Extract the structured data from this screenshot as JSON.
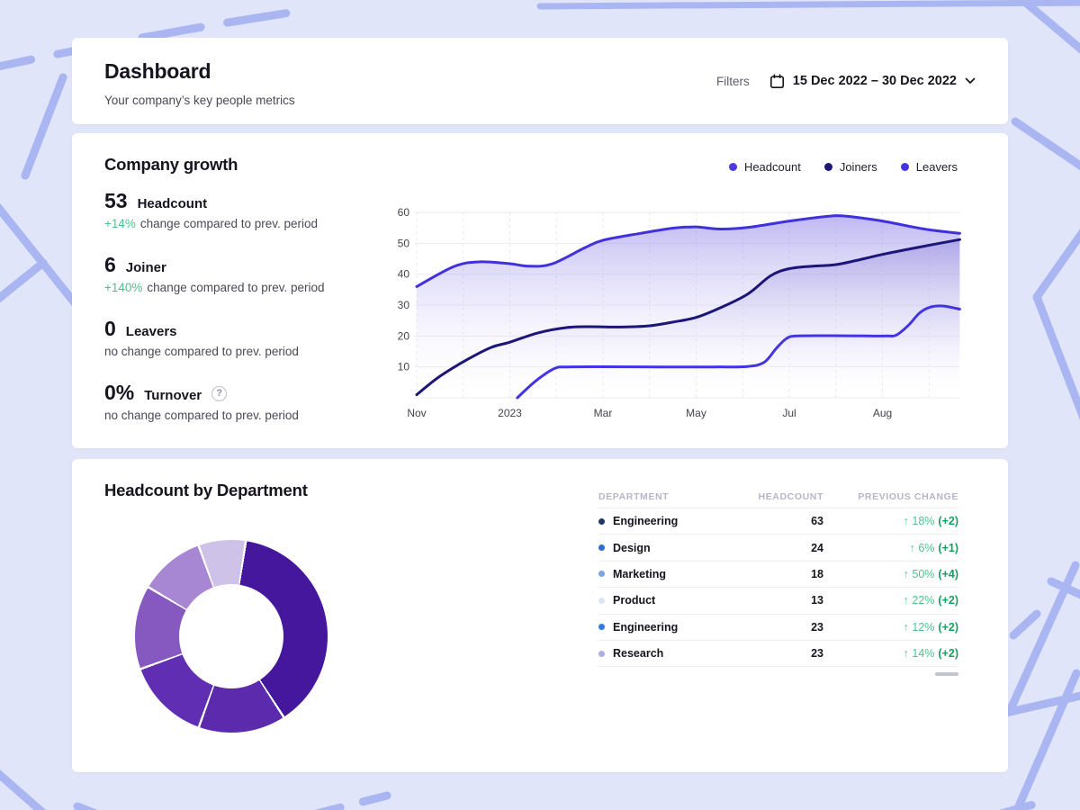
{
  "page": {
    "background": "#e0e5f9",
    "pattern_color": "#a9b6f2",
    "card_color": "#ffffff"
  },
  "header": {
    "title": "Dashboard",
    "subtitle": "Your company’s key people metrics",
    "filters_label": "Filters",
    "date_range": "15 Dec 2022 – 30 Dec 2022"
  },
  "growth": {
    "title": "Company growth",
    "legend": [
      {
        "label": "Headcount",
        "color": "#4b3ae4"
      },
      {
        "label": "Joiners",
        "color": "#1b1677"
      },
      {
        "label": "Leavers",
        "color": "#4334e2"
      }
    ],
    "metrics": [
      {
        "value": "53",
        "label": "Headcount",
        "change": "+14%",
        "change_text": "change compared to prev. period",
        "help": false
      },
      {
        "value": "6",
        "label": "Joiner",
        "change": "+140%",
        "change_text": "change compared to prev. period",
        "help": false
      },
      {
        "value": "0",
        "label": "Leavers",
        "change": "",
        "change_text": "no change compared to prev. period",
        "help": false
      },
      {
        "value": "0%",
        "label": "Turnover",
        "change": "",
        "change_text": "no change compared to prev. period",
        "help": true
      }
    ]
  },
  "department": {
    "title": "Headcount by Department",
    "table": {
      "headers": [
        "DEPARTMENT",
        "HEADCOUNT",
        "PREVIOUS CHANGE"
      ],
      "rows": [
        {
          "name": "Engineering",
          "dot": "#1f3864",
          "headcount": "63",
          "change_pct": "↑ 18%",
          "change_abs": "(+2)"
        },
        {
          "name": "Design",
          "dot": "#2b6fd4",
          "headcount": "24",
          "change_pct": "↑ 6%",
          "change_abs": "(+1)"
        },
        {
          "name": "Marketing",
          "dot": "#7ba3e8",
          "headcount": "18",
          "change_pct": "↑ 50%",
          "change_abs": "(+4)"
        },
        {
          "name": "Product",
          "dot": "#d9e6f8",
          "headcount": "13",
          "change_pct": "↑ 22%",
          "change_abs": "(+2)"
        },
        {
          "name": "Engineering",
          "dot": "#2e7de4",
          "headcount": "23",
          "change_pct": "↑ 12%",
          "change_abs": "(+2)"
        },
        {
          "name": "Research",
          "dot": "#a9b0e0",
          "headcount": "23",
          "change_pct": "↑ 14%",
          "change_abs": "(+2)"
        }
      ]
    }
  },
  "chart_data": [
    {
      "type": "area",
      "title": "Company growth",
      "x_ticks": [
        "Nov",
        "2023",
        "Mar",
        "May",
        "Jul",
        "Aug"
      ],
      "y_ticks": [
        10,
        20,
        30,
        40,
        50,
        60
      ],
      "ylim": [
        0,
        60
      ],
      "grid": true,
      "legend_position": "top-right",
      "series": [
        {
          "name": "Headcount",
          "color": "#4031dd",
          "fill": "#7b6ce4",
          "points": [
            [
              0,
              36
            ],
            [
              0.4,
              42.5
            ],
            [
              0.68,
              44
            ],
            [
              1,
              43.4
            ],
            [
              1.2,
              42.6
            ],
            [
              1.45,
              43.3
            ],
            [
              1.8,
              48.5
            ],
            [
              2,
              51
            ],
            [
              2.4,
              53.2
            ],
            [
              2.75,
              54.9
            ],
            [
              3,
              55.3
            ],
            [
              3.25,
              54.6
            ],
            [
              3.55,
              55.1
            ],
            [
              4,
              57.2
            ],
            [
              4.4,
              58.7
            ],
            [
              4.6,
              58.8
            ],
            [
              5,
              57.2
            ],
            [
              5.45,
              54.6
            ],
            [
              5.83,
              53.2
            ]
          ]
        },
        {
          "name": "Joiners",
          "color": "#1b1677",
          "fill": "#6f63cf",
          "points": [
            [
              0,
              1
            ],
            [
              0.25,
              7
            ],
            [
              0.55,
              12.5
            ],
            [
              0.8,
              16.3
            ],
            [
              1,
              18
            ],
            [
              1.3,
              21
            ],
            [
              1.6,
              22.7
            ],
            [
              1.85,
              23
            ],
            [
              2.2,
              22.9
            ],
            [
              2.5,
              23.3
            ],
            [
              2.75,
              24.5
            ],
            [
              3,
              26
            ],
            [
              3.25,
              29
            ],
            [
              3.55,
              33.5
            ],
            [
              3.8,
              39.5
            ],
            [
              4,
              41.8
            ],
            [
              4.25,
              42.6
            ],
            [
              4.5,
              43.1
            ],
            [
              4.8,
              45
            ],
            [
              5,
              46.4
            ],
            [
              5.4,
              48.8
            ],
            [
              5.83,
              51.2
            ]
          ]
        },
        {
          "name": "Leavers",
          "color": "#4334e2",
          "fill": "#7b6ce4",
          "points": [
            [
              1.08,
              0
            ],
            [
              1.28,
              5.5
            ],
            [
              1.48,
              9.5
            ],
            [
              1.62,
              10
            ],
            [
              2,
              10.05
            ],
            [
              2.6,
              10
            ],
            [
              3.2,
              10
            ],
            [
              3.55,
              10.15
            ],
            [
              3.73,
              11.5
            ],
            [
              3.86,
              16
            ],
            [
              3.97,
              19.2
            ],
            [
              4.08,
              20
            ],
            [
              4.45,
              20.1
            ],
            [
              4.85,
              20
            ],
            [
              5.05,
              20
            ],
            [
              5.15,
              20.3
            ],
            [
              5.28,
              23.5
            ],
            [
              5.4,
              27.5
            ],
            [
              5.52,
              29.4
            ],
            [
              5.65,
              29.7
            ],
            [
              5.83,
              28.7
            ]
          ]
        }
      ]
    },
    {
      "type": "pie",
      "title": "Headcount by Department",
      "donut": true,
      "start_angle_deg": 8,
      "labels": [
        "Engineering",
        "Design",
        "Engineering",
        "Research",
        "Marketing",
        "Product"
      ],
      "values": [
        63,
        24,
        23,
        23,
        18,
        13
      ],
      "colors": [
        "#45179c",
        "#5b2aad",
        "#5f2eb2",
        "#8659c1",
        "#a787d3",
        "#cfc2e8"
      ]
    }
  ]
}
